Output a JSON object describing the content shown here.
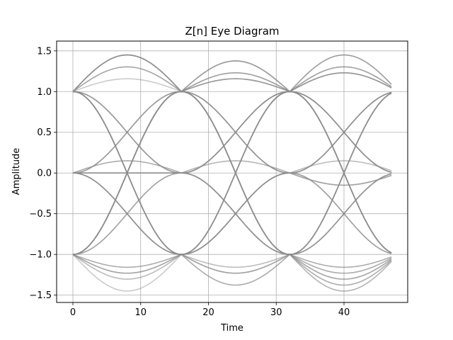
{
  "chart_data": {
    "type": "line",
    "title": "Z[n] Eye Diagram",
    "xlabel": "Time",
    "ylabel": "Amplitude",
    "xlim": [
      -2.4,
      49.4
    ],
    "ylim": [
      -1.59,
      1.62
    ],
    "xticks": [
      0,
      10,
      20,
      30,
      40
    ],
    "xtick_labels": [
      "0",
      "10",
      "20",
      "30",
      "40"
    ],
    "yticks": [
      -1.5,
      -1.0,
      -0.5,
      0.0,
      0.5,
      1.0,
      1.5
    ],
    "ytick_labels": [
      "−1.5",
      "−1.0",
      "−0.5",
      "0.0",
      "0.5",
      "1.0",
      "1.5"
    ],
    "grid": true,
    "line_color": "#8c8c8c",
    "symbol_period": 16,
    "symbol_times": [
      0,
      16,
      32,
      48
    ],
    "eye": {
      "type": "multi-trace eye diagram",
      "sample_levels": [
        -1,
        0,
        1
      ],
      "overshoot_peak": 1.45,
      "undershoot_trough": -1.45
    },
    "series": [
      {
        "values": [
          1,
          1,
          1,
          1
        ]
      },
      {
        "values": [
          1,
          1,
          1,
          -1
        ]
      },
      {
        "values": [
          1,
          1,
          -1,
          1
        ]
      },
      {
        "values": [
          1,
          -1,
          1,
          1
        ]
      },
      {
        "values": [
          -1,
          1,
          1,
          1
        ]
      },
      {
        "values": [
          -1,
          -1,
          -1,
          -1
        ]
      },
      {
        "values": [
          -1,
          -1,
          -1,
          1
        ]
      },
      {
        "values": [
          -1,
          -1,
          1,
          -1
        ]
      },
      {
        "values": [
          -1,
          1,
          -1,
          -1
        ]
      },
      {
        "values": [
          1,
          -1,
          -1,
          -1
        ]
      },
      {
        "values": [
          1,
          -1,
          1,
          -1
        ]
      },
      {
        "values": [
          -1,
          1,
          -1,
          1
        ]
      },
      {
        "values": [
          1,
          1,
          -1,
          -1
        ]
      },
      {
        "values": [
          -1,
          -1,
          1,
          1
        ]
      },
      {
        "values": [
          1,
          -1,
          -1,
          1
        ]
      },
      {
        "values": [
          -1,
          1,
          1,
          -1
        ]
      },
      {
        "values": [
          0,
          0,
          0,
          0
        ]
      },
      {
        "values": [
          0,
          1,
          0,
          -1
        ]
      },
      {
        "values": [
          0,
          -1,
          0,
          1
        ]
      },
      {
        "values": [
          1,
          0,
          -1,
          0
        ]
      },
      {
        "values": [
          -1,
          0,
          1,
          0
        ]
      },
      {
        "values": [
          0,
          1,
          -1,
          0
        ]
      },
      {
        "values": [
          0,
          -1,
          1,
          0
        ]
      },
      {
        "values": [
          1,
          0,
          1,
          0
        ]
      },
      {
        "values": [
          -1,
          0,
          -1,
          0
        ]
      },
      {
        "values": [
          0,
          0,
          1,
          1
        ]
      },
      {
        "values": [
          0,
          0,
          -1,
          -1
        ]
      },
      {
        "values": [
          1,
          1,
          0,
          0
        ]
      },
      {
        "values": [
          -1,
          -1,
          0,
          0
        ]
      },
      {
        "values": [
          1,
          -1,
          0,
          1
        ]
      },
      {
        "values": [
          -1,
          1,
          0,
          -1
        ]
      },
      {
        "values": [
          0,
          1,
          1,
          -1
        ]
      }
    ]
  }
}
